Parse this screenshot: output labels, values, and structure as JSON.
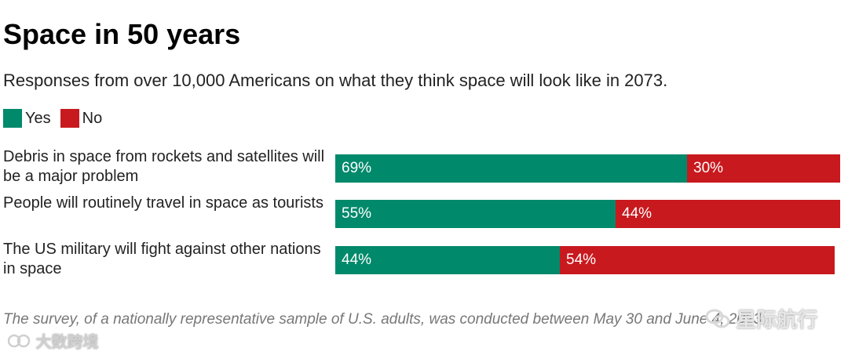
{
  "title": "Space in 50 years",
  "subtitle": "Responses from over 10,000 Americans on what they think space will look like in 2073.",
  "legend": [
    {
      "label": "Yes",
      "color": "#00896b"
    },
    {
      "label": "No",
      "color": "#c8191e"
    }
  ],
  "chart_data": {
    "type": "bar",
    "orientation": "horizontal-stacked",
    "title": "Space in 50 years",
    "categories": [
      "Debris in space from rockets and satellites will be a major problem",
      "People will routinely travel in space as tourists",
      "The US military will fight against other nations in space"
    ],
    "series": [
      {
        "name": "Yes",
        "color": "#00896b",
        "values": [
          69,
          55,
          44
        ],
        "labels": [
          "69%",
          "55%",
          "44%"
        ]
      },
      {
        "name": "No",
        "color": "#c8191e",
        "values": [
          30,
          44,
          54
        ],
        "labels": [
          "30%",
          "44%",
          "54%"
        ]
      }
    ],
    "xlim": [
      0,
      100
    ],
    "xlabel": "",
    "ylabel": "",
    "legend_position": "top-left",
    "grid": false
  },
  "footnote": "The survey, of a nationally representative sample of U.S. adults, was conducted between May 30 and June 4, 2023.",
  "watermarks": {
    "left": "大数跨境",
    "right": "星际航行"
  }
}
